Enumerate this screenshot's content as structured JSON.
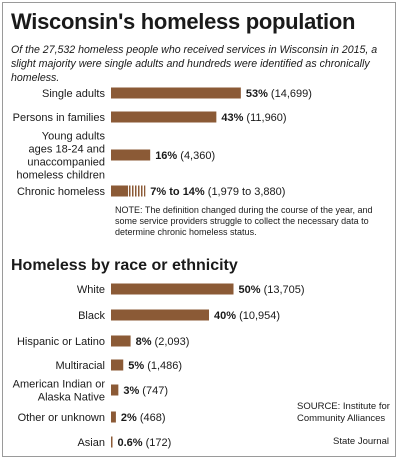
{
  "title": "Wisconsin's homeless population",
  "subtitle": "Of the 27,532 homeless people who received services in Wisconsin in 2015, a slight majority were single adults and hundreds were identified as chronically homeless.",
  "note": "NOTE: The definition changed during the course of the year, and some service providers struggle to collect the necessary data to determine chronic homeless status.",
  "source": "SOURCE: Institute for Community Alliances",
  "credit": "State Journal",
  "colors": {
    "bar": "#8b5a36",
    "hatch": "#c4a484"
  },
  "chart_data": [
    {
      "type": "bar",
      "orientation": "horizontal",
      "title": "",
      "xlim": [
        0,
        100
      ],
      "categories": [
        "Single adults",
        "Persons in families",
        "Young adults ages 18-24 and unaccompanied homeless children",
        "Chronic homeless"
      ],
      "category_lines": [
        [
          "Single adults"
        ],
        [
          "Persons in families"
        ],
        [
          "Young adults",
          "ages 18-24 and",
          "unaccompanied",
          "homeless children"
        ],
        [
          "Chronic homeless"
        ]
      ],
      "values": [
        53,
        43,
        16,
        14
      ],
      "range_low": [
        null,
        null,
        null,
        7
      ],
      "pct_labels": [
        "53%",
        "43%",
        "16%",
        "7% to 14%"
      ],
      "count_labels": [
        "(14,699)",
        "(11,960)",
        "(4,360)",
        "(1,979 to 3,880)"
      ]
    },
    {
      "type": "bar",
      "orientation": "horizontal",
      "title": "Homeless by race or ethnicity",
      "xlim": [
        0,
        100
      ],
      "categories": [
        "White",
        "Black",
        "Hispanic or Latino",
        "Multiracial",
        "American Indian or Alaska Native",
        "Other or unknown",
        "Asian"
      ],
      "category_lines": [
        [
          "White"
        ],
        [
          "Black"
        ],
        [
          "Hispanic or Latino"
        ],
        [
          "Multiracial"
        ],
        [
          "American Indian or",
          "Alaska Native"
        ],
        [
          "Other or unknown"
        ],
        [
          "Asian"
        ]
      ],
      "values": [
        50,
        40,
        8,
        5,
        3,
        2,
        0.6
      ],
      "pct_labels": [
        "50%",
        "40%",
        "8%",
        "5%",
        "3%",
        "2%",
        "0.6%"
      ],
      "count_labels": [
        "(13,705)",
        "(10,954)",
        "(2,093)",
        "(1,486)",
        "(747)",
        "(468)",
        "(172)"
      ]
    }
  ]
}
